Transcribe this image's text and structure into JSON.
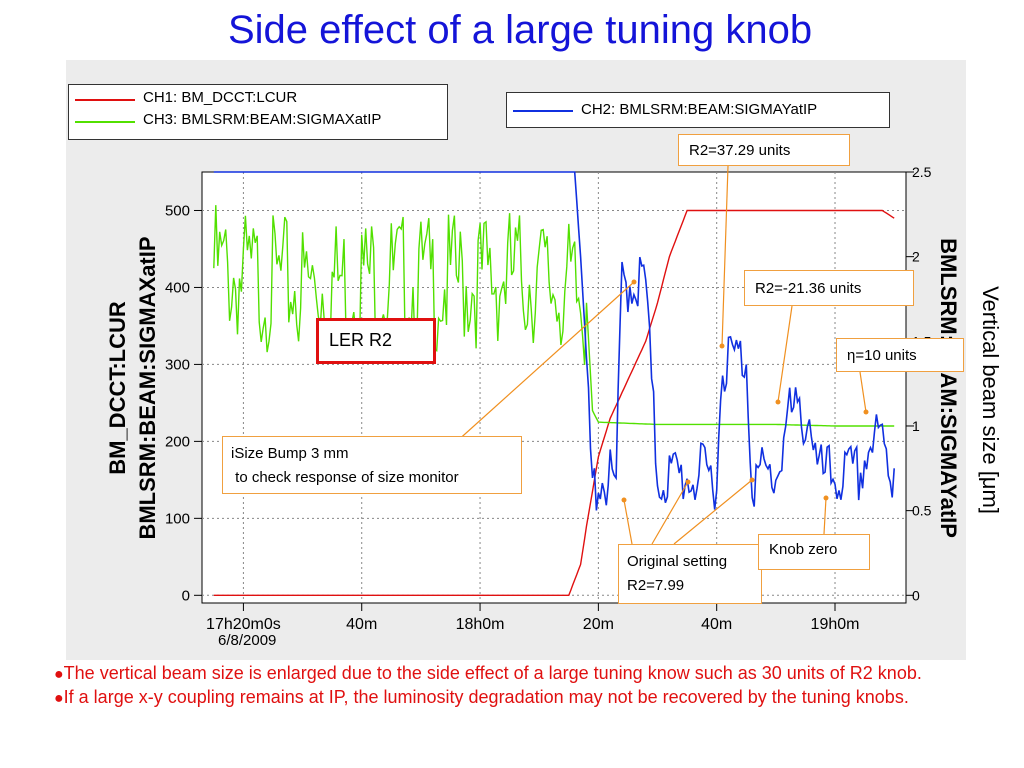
{
  "title": "Side effect of a large tuning knob",
  "legend_left": [
    {
      "color": "#e01010",
      "label": "CH1: BM_DCCT:LCUR"
    },
    {
      "color": "#52e000",
      "label": "CH3: BMLSRM:BEAM:SIGMAXatIP"
    }
  ],
  "legend_right": [
    {
      "color": "#1030e0",
      "label": "CH2: BMLSRM:BEAM:SIGMAYatIP"
    }
  ],
  "left_axis_label_1": "BM_DCCT:LCUR",
  "left_axis_label_2": "BMLSRM:BEAM:SIGMAXatIP",
  "right_axis_label": "BMLSRM:BEAM:SIGMAYatIP",
  "outer_label": "Vertical beam size [μm]",
  "date_label": "6/8/2009",
  "annotations": {
    "ler": "LER R2",
    "isize_line1": "iSize Bump 3 mm",
    "isize_line2": " to check response of size monitor",
    "r2_37": "R2=37.29 units",
    "r2_21": "R2=-21.36 units",
    "eta": "η=10 units",
    "orig_line1": "Original setting",
    "orig_line2": "R2=7.99",
    "knob_zero": "Knob zero"
  },
  "bullets": [
    "The vertical beam size is enlarged due to the side effect of a large tuning know such as 30 units of R2 knob.",
    "If a large x-y coupling remains at IP, the luminosity degradation may not be recovered by the tuning knobs."
  ],
  "chart_data": {
    "type": "line",
    "x_ticks": [
      {
        "t": 0,
        "label": "17h20m0s"
      },
      {
        "t": 20,
        "label": "40m"
      },
      {
        "t": 40,
        "label": "18h0m"
      },
      {
        "t": 60,
        "label": "20m"
      },
      {
        "t": 80,
        "label": "40m"
      },
      {
        "t": 100,
        "label": "19h0m"
      }
    ],
    "xlim": [
      -7,
      112
    ],
    "y_left": {
      "ylim": [
        -10,
        550
      ],
      "ticks": [
        0,
        100,
        200,
        300,
        400,
        500
      ]
    },
    "y_right": {
      "ylim": [
        -0.0455,
        2.5
      ],
      "ticks": [
        0,
        0.5,
        1,
        1.5,
        2,
        2.5
      ]
    },
    "series": [
      {
        "name": "CH1: BM_DCCT:LCUR",
        "axis": "left",
        "color": "#e01010",
        "x": [
          -5,
          53,
          55,
          57,
          58,
          60,
          62,
          65,
          68,
          70,
          72,
          75,
          80,
          90,
          100,
          108,
          110
        ],
        "y": [
          0,
          0,
          0,
          40,
          90,
          180,
          230,
          280,
          330,
          380,
          440,
          500,
          500,
          500,
          500,
          500,
          490
        ]
      },
      {
        "name": "CH3: BMLSRM:BEAM:SIGMAXatIP",
        "axis": "left",
        "color": "#52e000",
        "x": [
          -5,
          0,
          5,
          10,
          15,
          20,
          25,
          30,
          35,
          40,
          45,
          50,
          55,
          57,
          58,
          59,
          60,
          70,
          80,
          90,
          100,
          110
        ],
        "y": [
          470,
          455,
          450,
          445,
          450,
          460,
          455,
          450,
          450,
          455,
          460,
          455,
          440,
          420,
          380,
          240,
          225,
          222,
          222,
          222,
          220,
          220
        ]
      },
      {
        "name": "CH2: BMLSRM:BEAM:SIGMAYatIP",
        "axis": "right",
        "color": "#1030e0",
        "x": [
          -5,
          15,
          16,
          35,
          36,
          45,
          46,
          55,
          56,
          57,
          58,
          59,
          60,
          63,
          64,
          68,
          69,
          70,
          72,
          76,
          80,
          81,
          85,
          86,
          90,
          92,
          96,
          97,
          100,
          104,
          106,
          108,
          110
        ],
        "y": [
          2.5,
          2.5,
          2.5,
          2.5,
          2.5,
          2.5,
          2.5,
          2.5,
          2.5,
          2.0,
          1.4,
          0.7,
          0.8,
          0.75,
          1.95,
          1.95,
          1.3,
          0.8,
          0.8,
          0.8,
          0.8,
          1.5,
          1.5,
          0.8,
          0.8,
          1.15,
          1.15,
          0.8,
          0.8,
          0.8,
          1.0,
          1.0,
          0.75
        ]
      }
    ],
    "grid": true
  }
}
